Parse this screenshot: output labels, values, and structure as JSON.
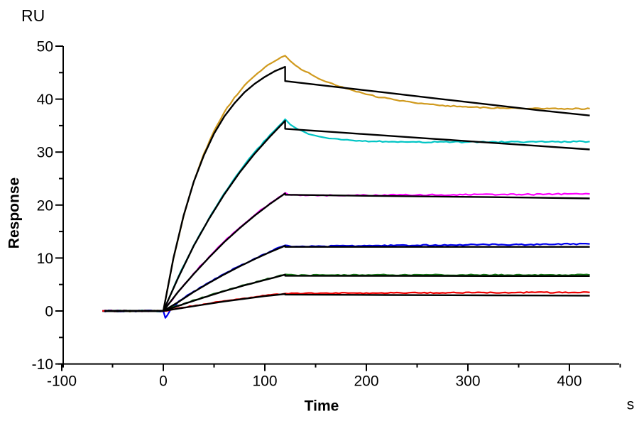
{
  "chart_data": {
    "type": "line",
    "description": "SPR sensorgram: response curves at six analyte concentrations with black kinetic fit lines",
    "x_axis": {
      "title": "Time",
      "unit_label": "s",
      "min": -100,
      "max": 449,
      "major_ticks": [
        -100,
        0,
        100,
        200,
        300,
        400
      ],
      "minor_ticks": [
        -50,
        50,
        150,
        250,
        350,
        450
      ]
    },
    "y_axis": {
      "title": "Response",
      "unit_label": "RU",
      "min": -10,
      "max": 50,
      "major_ticks": [
        50,
        40,
        30,
        20,
        10,
        0,
        -10
      ],
      "minor_ticks": [
        45,
        35,
        25,
        15,
        5,
        -5
      ]
    },
    "association_start_s": 0,
    "dissociation_start_s": 120,
    "series": [
      {
        "name": "measured-curve-1",
        "role": "measured",
        "color": "#D09A1E",
        "noise": 0.12,
        "points": [
          [
            -60,
            0
          ],
          [
            -30,
            0
          ],
          [
            0,
            0
          ],
          [
            10,
            9.9
          ],
          [
            20,
            17.9
          ],
          [
            30,
            24.4
          ],
          [
            40,
            29.7
          ],
          [
            50,
            34
          ],
          [
            60,
            37.5
          ],
          [
            70,
            40.3
          ],
          [
            80,
            42.6
          ],
          [
            90,
            44.4
          ],
          [
            100,
            46
          ],
          [
            110,
            47.2
          ],
          [
            120,
            48.2
          ],
          [
            125,
            47.2
          ],
          [
            130,
            46.4
          ],
          [
            140,
            45.2
          ],
          [
            150,
            44.2
          ],
          [
            160,
            43.3
          ],
          [
            170,
            42.6
          ],
          [
            180,
            42
          ],
          [
            190,
            41.4
          ],
          [
            200,
            40.9
          ],
          [
            215,
            40.3
          ],
          [
            230,
            39.8
          ],
          [
            245,
            39.4
          ],
          [
            260,
            39.1
          ],
          [
            280,
            38.75
          ],
          [
            300,
            38.5
          ],
          [
            320,
            38.35
          ],
          [
            340,
            38.25
          ],
          [
            360,
            38.2
          ],
          [
            380,
            38.2
          ],
          [
            400,
            38.15
          ],
          [
            420,
            38.2
          ]
        ]
      },
      {
        "name": "measured-curve-2",
        "role": "measured",
        "color": "#00C4C4",
        "noise": 0.12,
        "points": [
          [
            -60,
            0
          ],
          [
            -30,
            0
          ],
          [
            0,
            0
          ],
          [
            15,
            6.5
          ],
          [
            30,
            12.4
          ],
          [
            45,
            17.5
          ],
          [
            60,
            22.2
          ],
          [
            75,
            26.3
          ],
          [
            90,
            30
          ],
          [
            105,
            33.2
          ],
          [
            120,
            36.2
          ],
          [
            125,
            35.2
          ],
          [
            130,
            34.6
          ],
          [
            140,
            33.7
          ],
          [
            150,
            33.1
          ],
          [
            160,
            32.7
          ],
          [
            175,
            32.35
          ],
          [
            190,
            32.1
          ],
          [
            210,
            32
          ],
          [
            240,
            31.9
          ],
          [
            270,
            31.9
          ],
          [
            300,
            31.9
          ],
          [
            340,
            31.9
          ],
          [
            380,
            31.95
          ],
          [
            420,
            32
          ]
        ]
      },
      {
        "name": "measured-curve-3",
        "role": "measured",
        "color": "#FF00FF",
        "noise": 0.12,
        "points": [
          [
            -60,
            0
          ],
          [
            -30,
            0
          ],
          [
            0,
            0
          ],
          [
            15,
            3.7
          ],
          [
            30,
            7.1
          ],
          [
            45,
            10.2
          ],
          [
            60,
            13.1
          ],
          [
            75,
            15.7
          ],
          [
            90,
            18.1
          ],
          [
            105,
            20.3
          ],
          [
            120,
            22.3
          ],
          [
            126,
            21.9
          ],
          [
            140,
            21.8
          ],
          [
            170,
            21.8
          ],
          [
            200,
            21.85
          ],
          [
            250,
            21.9
          ],
          [
            300,
            21.95
          ],
          [
            350,
            22
          ],
          [
            420,
            22.1
          ]
        ]
      },
      {
        "name": "measured-curve-4",
        "role": "measured",
        "color": "#0000EE",
        "noise": 0.12,
        "points": [
          [
            -60,
            0
          ],
          [
            -30,
            0
          ],
          [
            0,
            0
          ],
          [
            2,
            -1.3
          ],
          [
            4,
            -0.8
          ],
          [
            7,
            0.2
          ],
          [
            15,
            1.8
          ],
          [
            30,
            3.7
          ],
          [
            45,
            5.4
          ],
          [
            60,
            7
          ],
          [
            75,
            8.5
          ],
          [
            90,
            9.9
          ],
          [
            105,
            11.2
          ],
          [
            120,
            12.4
          ],
          [
            128,
            12.15
          ],
          [
            150,
            12.2
          ],
          [
            200,
            12.3
          ],
          [
            250,
            12.4
          ],
          [
            300,
            12.5
          ],
          [
            350,
            12.55
          ],
          [
            420,
            12.65
          ]
        ]
      },
      {
        "name": "measured-curve-5",
        "role": "measured",
        "color": "#157515",
        "noise": 0.1,
        "points": [
          [
            -60,
            0
          ],
          [
            -30,
            0
          ],
          [
            0,
            0
          ],
          [
            20,
            1.35
          ],
          [
            40,
            2.6
          ],
          [
            60,
            3.8
          ],
          [
            80,
            4.9
          ],
          [
            100,
            5.9
          ],
          [
            120,
            6.9
          ],
          [
            130,
            6.75
          ],
          [
            160,
            6.75
          ],
          [
            220,
            6.8
          ],
          [
            300,
            6.8
          ],
          [
            360,
            6.8
          ],
          [
            420,
            6.8
          ]
        ]
      },
      {
        "name": "measured-curve-6",
        "role": "measured",
        "color": "#EE0000",
        "noise": 0.1,
        "points": [
          [
            -60,
            0
          ],
          [
            -30,
            0
          ],
          [
            0,
            0
          ],
          [
            20,
            0.65
          ],
          [
            40,
            1.3
          ],
          [
            60,
            1.9
          ],
          [
            80,
            2.4
          ],
          [
            100,
            2.9
          ],
          [
            120,
            3.3
          ],
          [
            140,
            3.35
          ],
          [
            200,
            3.4
          ],
          [
            280,
            3.45
          ],
          [
            360,
            3.5
          ],
          [
            420,
            3.5
          ]
        ]
      },
      {
        "name": "fit-curve-1",
        "role": "fit",
        "color": "#000000",
        "noise": 0,
        "points": [
          [
            -58,
            0
          ],
          [
            -30,
            0
          ],
          [
            0,
            0
          ],
          [
            10,
            10
          ],
          [
            20,
            18
          ],
          [
            30,
            24.4
          ],
          [
            40,
            29.4
          ],
          [
            50,
            33.5
          ],
          [
            60,
            36.7
          ],
          [
            70,
            39.2
          ],
          [
            80,
            41.3
          ],
          [
            90,
            42.9
          ],
          [
            100,
            44.2
          ],
          [
            110,
            45.3
          ],
          [
            120,
            46.1
          ],
          [
            120,
            43.4
          ],
          [
            170,
            42.3
          ],
          [
            220,
            41.2
          ],
          [
            270,
            40.1
          ],
          [
            320,
            39
          ],
          [
            370,
            37.9
          ],
          [
            420,
            36.9
          ]
        ]
      },
      {
        "name": "fit-curve-2",
        "role": "fit",
        "color": "#000000",
        "noise": 0,
        "points": [
          [
            -58,
            0
          ],
          [
            -30,
            0
          ],
          [
            0,
            0
          ],
          [
            15,
            6.4
          ],
          [
            30,
            12.3
          ],
          [
            45,
            17.4
          ],
          [
            60,
            22
          ],
          [
            75,
            26.1
          ],
          [
            90,
            29.7
          ],
          [
            105,
            32.9
          ],
          [
            120,
            35.9
          ],
          [
            120,
            34.4
          ],
          [
            170,
            33.75
          ],
          [
            220,
            33.1
          ],
          [
            270,
            32.45
          ],
          [
            320,
            31.8
          ],
          [
            370,
            31.15
          ],
          [
            420,
            30.5
          ]
        ]
      },
      {
        "name": "fit-curve-3",
        "role": "fit",
        "color": "#000000",
        "noise": 0,
        "points": [
          [
            -58,
            0
          ],
          [
            -30,
            0
          ],
          [
            0,
            0
          ],
          [
            15,
            3.7
          ],
          [
            30,
            7
          ],
          [
            45,
            10.1
          ],
          [
            60,
            13
          ],
          [
            75,
            15.6
          ],
          [
            90,
            18
          ],
          [
            105,
            20.2
          ],
          [
            120,
            22.2
          ],
          [
            120,
            21.95
          ],
          [
            220,
            21.7
          ],
          [
            320,
            21.5
          ],
          [
            420,
            21.25
          ]
        ]
      },
      {
        "name": "fit-curve-4",
        "role": "fit",
        "color": "#000000",
        "noise": 0,
        "points": [
          [
            -58,
            0
          ],
          [
            -30,
            0
          ],
          [
            0,
            0
          ],
          [
            15,
            1.7
          ],
          [
            30,
            3.6
          ],
          [
            45,
            5.3
          ],
          [
            60,
            6.9
          ],
          [
            75,
            8.4
          ],
          [
            90,
            9.8
          ],
          [
            105,
            11.1
          ],
          [
            120,
            12.3
          ],
          [
            120,
            12.1
          ],
          [
            220,
            12.1
          ],
          [
            320,
            12.1
          ],
          [
            420,
            12.1
          ]
        ]
      },
      {
        "name": "fit-curve-5",
        "role": "fit",
        "color": "#000000",
        "noise": 0,
        "points": [
          [
            -58,
            0
          ],
          [
            -30,
            0
          ],
          [
            0,
            0
          ],
          [
            20,
            1.3
          ],
          [
            40,
            2.55
          ],
          [
            60,
            3.75
          ],
          [
            80,
            4.85
          ],
          [
            100,
            5.85
          ],
          [
            120,
            6.85
          ],
          [
            120,
            6.65
          ],
          [
            220,
            6.62
          ],
          [
            320,
            6.6
          ],
          [
            420,
            6.6
          ]
        ]
      },
      {
        "name": "fit-curve-6",
        "role": "fit",
        "color": "#000000",
        "noise": 0,
        "points": [
          [
            -58,
            0
          ],
          [
            -30,
            0
          ],
          [
            0,
            0
          ],
          [
            20,
            0.6
          ],
          [
            40,
            1.2
          ],
          [
            60,
            1.8
          ],
          [
            80,
            2.3
          ],
          [
            100,
            2.8
          ],
          [
            120,
            3.2
          ],
          [
            120,
            3.1
          ],
          [
            220,
            3.02
          ],
          [
            320,
            2.95
          ],
          [
            420,
            2.9
          ]
        ]
      }
    ]
  }
}
